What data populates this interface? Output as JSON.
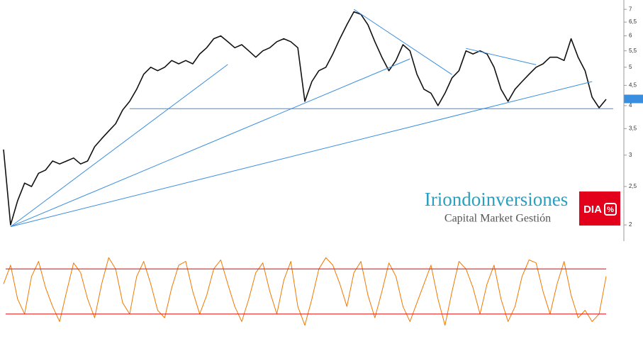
{
  "chart_data": [
    {
      "type": "line",
      "categories": [
        null,
        null,
        null,
        null,
        null,
        null,
        null,
        null,
        null,
        null,
        null,
        null,
        null,
        null,
        null,
        null,
        null,
        null,
        null,
        null,
        null,
        null,
        null,
        null,
        null,
        null,
        null,
        null,
        null,
        null,
        null,
        null,
        null,
        null,
        null,
        null,
        null,
        null,
        null,
        null,
        null,
        null,
        null,
        null,
        null,
        null,
        null,
        null,
        null,
        null,
        null,
        null,
        null,
        null,
        null,
        null,
        null,
        null,
        null,
        null,
        null,
        null,
        null,
        null,
        null,
        null,
        null,
        null,
        null,
        null,
        null,
        null,
        null,
        null,
        null,
        null,
        null,
        null,
        null,
        null,
        null,
        null,
        null,
        null,
        null,
        null,
        null
      ],
      "values": [
        3.1,
        2.0,
        2.3,
        2.55,
        2.5,
        2.7,
        2.75,
        2.9,
        2.85,
        2.9,
        2.95,
        2.85,
        2.9,
        3.15,
        3.3,
        3.45,
        3.6,
        3.9,
        4.1,
        4.4,
        4.8,
        5.0,
        4.9,
        5.0,
        5.2,
        5.1,
        5.2,
        5.1,
        5.4,
        5.6,
        5.9,
        6.0,
        5.8,
        5.6,
        5.7,
        5.5,
        5.3,
        5.5,
        5.6,
        5.8,
        5.9,
        5.8,
        5.6,
        4.1,
        4.6,
        4.9,
        5.0,
        5.4,
        5.9,
        6.4,
        6.9,
        6.8,
        6.4,
        5.8,
        5.3,
        4.9,
        5.2,
        5.7,
        5.5,
        4.8,
        4.4,
        4.3,
        4.0,
        4.3,
        4.7,
        4.9,
        5.5,
        5.4,
        5.5,
        5.4,
        5.0,
        4.4,
        4.1,
        4.4,
        4.6,
        4.8,
        5.0,
        5.1,
        5.3,
        5.3,
        5.2,
        5.9,
        5.3,
        4.9,
        4.2,
        3.95,
        4.15
      ],
      "color": "#111111",
      "log_scale": true,
      "ylim": [
        1.82,
        7.39
      ],
      "yticks": [
        2,
        {
          "value": 2.5,
          "label": "2,5"
        },
        3,
        {
          "value": 3.5,
          "label": "3,5"
        },
        4,
        {
          "value": 4.5,
          "label": "4,5"
        },
        5,
        {
          "value": 5.5,
          "label": "5,5"
        },
        6,
        {
          "value": 6.5,
          "label": "6,5"
        },
        7
      ],
      "last_value": {
        "value": 4.159,
        "label": "4,159"
      },
      "trendline_color": "#3a8ee0",
      "trendlines": [
        {
          "x": [
            1,
            32
          ],
          "values": [
            1.98,
            5.08
          ]
        },
        {
          "x": [
            1,
            58
          ],
          "values": [
            1.98,
            5.25
          ]
        },
        {
          "x": [
            1,
            84
          ],
          "values": [
            1.98,
            4.6
          ]
        },
        {
          "x": [
            18,
            87
          ],
          "values": [
            3.93,
            3.93
          ]
        },
        {
          "x": [
            50,
            64
          ],
          "values": [
            7.0,
            4.79
          ]
        },
        {
          "x": [
            66,
            76
          ],
          "values": [
            5.58,
            5.07
          ]
        }
      ]
    },
    {
      "type": "line",
      "categories": [
        null,
        null,
        null,
        null,
        null,
        null,
        null,
        null,
        null,
        null,
        null,
        null,
        null,
        null,
        null,
        null,
        null,
        null,
        null,
        null,
        null,
        null,
        null,
        null,
        null,
        null,
        null,
        null,
        null,
        null,
        null,
        null,
        null,
        null,
        null,
        null,
        null,
        null,
        null,
        null,
        null,
        null,
        null,
        null,
        null,
        null,
        null,
        null,
        null,
        null,
        null,
        null,
        null,
        null,
        null,
        null,
        null,
        null,
        null,
        null,
        null,
        null,
        null,
        null,
        null,
        null,
        null,
        null,
        null,
        null,
        null,
        null,
        null,
        null,
        null,
        null,
        null,
        null,
        null,
        null,
        null,
        null,
        null,
        null,
        null,
        null,
        null
      ],
      "values": [
        60,
        85,
        40,
        20,
        70,
        90,
        55,
        30,
        10,
        50,
        88,
        75,
        40,
        15,
        60,
        95,
        80,
        35,
        20,
        70,
        90,
        60,
        25,
        15,
        55,
        85,
        90,
        50,
        20,
        45,
        80,
        92,
        60,
        30,
        10,
        40,
        75,
        88,
        50,
        20,
        65,
        90,
        30,
        5,
        40,
        80,
        95,
        85,
        60,
        30,
        75,
        90,
        45,
        15,
        50,
        88,
        70,
        30,
        10,
        35,
        60,
        85,
        40,
        5,
        50,
        90,
        80,
        55,
        20,
        60,
        85,
        40,
        10,
        30,
        70,
        92,
        88,
        50,
        20,
        60,
        90,
        45,
        15,
        25,
        10,
        20,
        70
      ],
      "color": "#f07800",
      "ylim": [
        0,
        100
      ],
      "levels": [
        20,
        80
      ],
      "level_color": "#e02020"
    }
  ],
  "watermark": {
    "title": "Iriondoinversiones",
    "subtitle": "Capital Market Gestión"
  },
  "logo": {
    "text": "DIA",
    "symbol": "%"
  }
}
